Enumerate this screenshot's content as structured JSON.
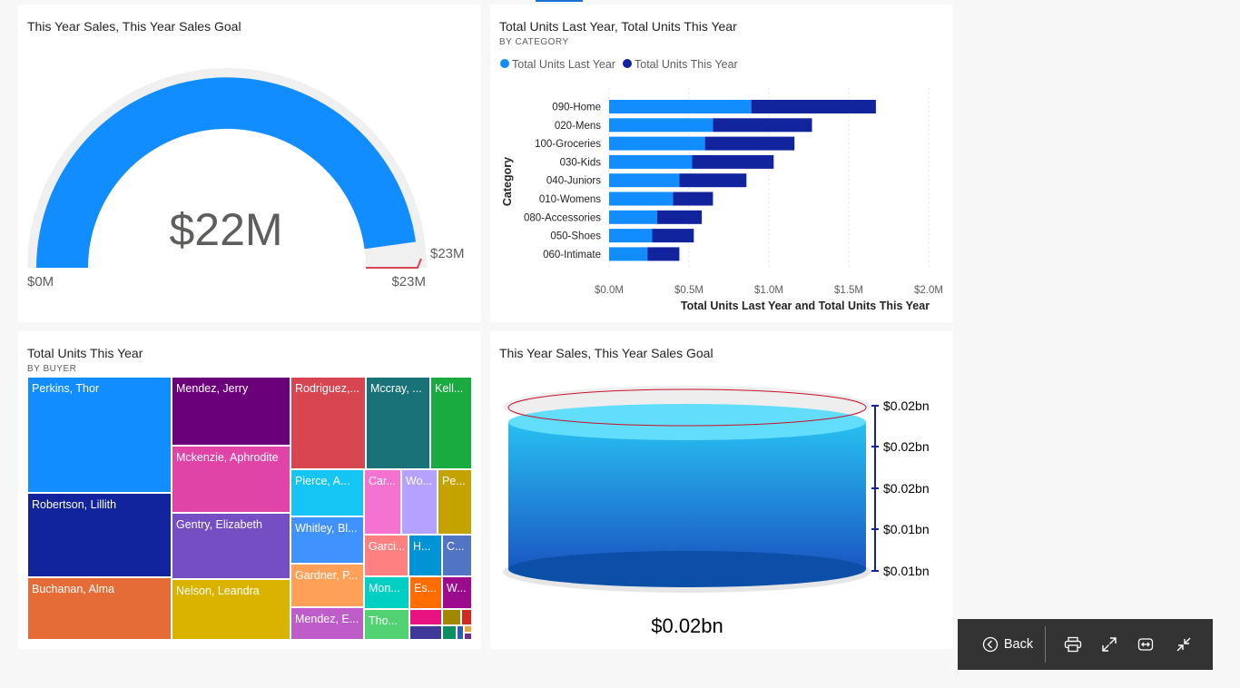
{
  "gauge": {
    "title": "This Year Sales, This Year Sales Goal",
    "value_label": "$22M",
    "min_label": "$0M",
    "max_label": "$23M",
    "target_label": "$23M",
    "value": 22,
    "min": 0,
    "max": 23,
    "target": 23,
    "fill_color": "#118DFF",
    "track_color": "#F0F0F0",
    "target_color": "#D64550"
  },
  "bar_chart": {
    "title": "Total Units Last Year, Total Units This Year",
    "subtitle": "BY CATEGORY",
    "legend": [
      {
        "label": "Total Units Last Year",
        "color": "#118DFF"
      },
      {
        "label": "Total Units This Year",
        "color": "#12239E"
      }
    ],
    "ylabel": "Category",
    "xlabel": "Total Units Last Year and Total Units This Year",
    "x_ticks": [
      "$0.0M",
      "$0.5M",
      "$1.0M",
      "$1.5M",
      "$2.0M"
    ]
  },
  "chart_data": {
    "type": "bar",
    "orientation": "horizontal",
    "stacked": true,
    "categories": [
      "090-Home",
      "020-Mens",
      "100-Groceries",
      "030-Kids",
      "040-Juniors",
      "010-Womens",
      "080-Accessories",
      "050-Shoes",
      "060-Intimate"
    ],
    "series": [
      {
        "name": "Total Units Last Year",
        "values": [
          0.89,
          0.65,
          0.6,
          0.52,
          0.44,
          0.4,
          0.3,
          0.27,
          0.24
        ]
      },
      {
        "name": "Total Units This Year",
        "values": [
          0.78,
          0.62,
          0.56,
          0.51,
          0.42,
          0.25,
          0.28,
          0.26,
          0.2
        ]
      }
    ],
    "xlim": [
      0,
      2.0
    ],
    "xlabel": "Total Units Last Year and Total Units This Year",
    "ylabel": "Category",
    "grid": true,
    "legend_position": "top-left"
  },
  "treemap": {
    "title": "Total Units This Year",
    "subtitle": "BY BUYER",
    "items": [
      {
        "label": "Perkins, Thor",
        "color": "#118DFF"
      },
      {
        "label": "Robertson, Lillith",
        "color": "#12239E"
      },
      {
        "label": "Buchanan, Alma",
        "color": "#E66C37"
      },
      {
        "label": "Mendez, Jerry",
        "color": "#6B007B"
      },
      {
        "label": "Mckenzie, Aphrodite",
        "color": "#E044A7"
      },
      {
        "label": "Gentry, Elizabeth",
        "color": "#744EC2"
      },
      {
        "label": "Nelson, Leandra",
        "color": "#D9B300"
      },
      {
        "label": "Rodriguez,...",
        "color": "#D64550"
      },
      {
        "label": "Mccray, ...",
        "color": "#197278"
      },
      {
        "label": "Kell...",
        "color": "#1AAB40"
      },
      {
        "label": "Pierce, A...",
        "color": "#15C6F4"
      },
      {
        "label": "Whitley, Bl...",
        "color": "#4092FF"
      },
      {
        "label": "Gardner, P...",
        "color": "#FFA058"
      },
      {
        "label": "Mendez, E...",
        "color": "#BE5DC9"
      },
      {
        "label": "Car...",
        "color": "#F472D0"
      },
      {
        "label": "Wo...",
        "color": "#B5A1FF"
      },
      {
        "label": "Pe...",
        "color": "#C4A200"
      },
      {
        "label": "Garci...",
        "color": "#FF8080"
      },
      {
        "label": "H...",
        "color": "#0093D5"
      },
      {
        "label": "C...",
        "color": "#5274C4"
      },
      {
        "label": "Mon...",
        "color": "#00CFC3"
      },
      {
        "label": "Es...",
        "color": "#FF6D00"
      },
      {
        "label": "W...",
        "color": "#9C0A8E"
      },
      {
        "label": "Tho...",
        "color": "#52D273"
      }
    ],
    "small_colors": [
      "#E8137E",
      "#A08900",
      "#D2291E",
      "#3F3A99",
      "#0B8F62",
      "#2C5DB0",
      "#E8A33D",
      "#6F2C91"
    ]
  },
  "cylinder": {
    "title": "This Year Sales, This Year Sales Goal",
    "value_label": "$0.02bn",
    "axis_labels": [
      "$0.02bn",
      "$0.02bn",
      "$0.02bn",
      "$0.01bn",
      "$0.01bn"
    ],
    "top_color": "#62DDFB",
    "body_color_top": "#28C0F2",
    "body_color_bottom": "#1A57C2",
    "base_color": "#0C4FA8",
    "target_color": "#C8102E"
  },
  "toolbar": {
    "back_label": "Back",
    "icons": [
      "back-circle-icon",
      "print-icon",
      "expand-icon",
      "fit-width-icon",
      "collapse-icon"
    ]
  }
}
